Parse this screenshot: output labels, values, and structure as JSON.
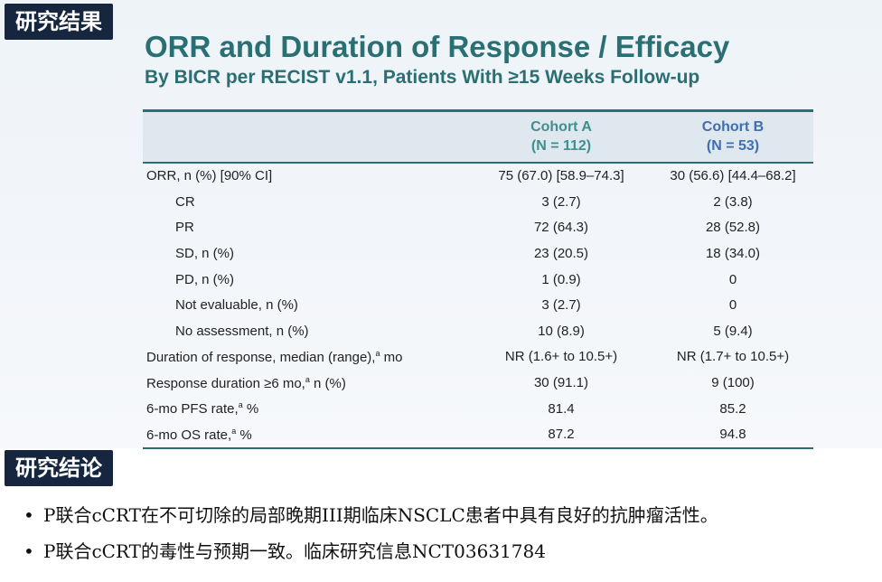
{
  "sections": {
    "results_label": "研究结果",
    "conclusion_label": "研究结论"
  },
  "slide": {
    "title": "ORR and Duration of Response / Efficacy",
    "subtitle": "By BICR per RECIST v1.1, Patients With ≥15 Weeks Follow-up"
  },
  "table": {
    "headers": {
      "cohort_a_name": "Cohort A",
      "cohort_a_n": "(N = 112)",
      "cohort_b_name": "Cohort B",
      "cohort_b_n": "(N = 53)"
    },
    "rows": [
      {
        "label": "ORR, n (%) [90% CI]",
        "a": "75 (67.0) [58.9–74.3]",
        "b": "30 (56.6) [44.4–68.2]"
      },
      {
        "label": "CR",
        "a": "3 (2.7)",
        "b": "2 (3.8)"
      },
      {
        "label": "PR",
        "a": "72 (64.3)",
        "b": "28 (52.8)"
      },
      {
        "label": "SD, n (%)",
        "a": "23 (20.5)",
        "b": "18 (34.0)"
      },
      {
        "label": "PD, n (%)",
        "a": "1 (0.9)",
        "b": "0"
      },
      {
        "label": "Not evaluable, n (%)",
        "a": "3 (2.7)",
        "b": "0"
      },
      {
        "label": "No assessment, n (%)",
        "a": "10 (8.9)",
        "b": "5 (9.4)"
      },
      {
        "label_pre": "Duration of response, median (range),",
        "label_sup": "a",
        "label_post": " mo",
        "a": "NR (1.6+ to 10.5+)",
        "b": "NR (1.7+ to 10.5+)"
      },
      {
        "label_pre": "Response duration ≥6 mo,",
        "label_sup": "a",
        "label_post": " n (%)",
        "a": "30 (91.1)",
        "b": "9 (100)"
      },
      {
        "label_pre": "6-mo PFS rate,",
        "label_sup": "a",
        "label_post": " %",
        "a": "81.4",
        "b": "85.2"
      },
      {
        "label_pre": "6-mo OS rate,",
        "label_sup": "a",
        "label_post": " %",
        "a": "87.2",
        "b": "94.8"
      }
    ]
  },
  "conclusions": {
    "bullet": "•",
    "items": [
      "P联合cCRT在不可切除的局部晚期III期临床NSCLC患者中具有良好的抗肿瘤活性。",
      "P联合cCRT的毒性与预期一致。临床研究信息NCT03631784"
    ]
  },
  "colors": {
    "title": "#2a6f73",
    "label_bg": "#17263f",
    "cohort_a": "#3f8f8f",
    "cohort_b": "#3f6fb0"
  }
}
